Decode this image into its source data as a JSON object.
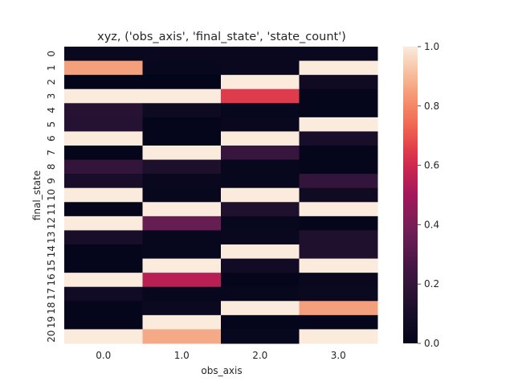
{
  "chart_data": {
    "type": "heatmap",
    "title": "xyz, ('obs_axis', 'final_state', 'state_count')",
    "xlabel": "obs_axis",
    "ylabel": "final_state",
    "x_categories": [
      "0.0",
      "1.0",
      "2.0",
      "3.0"
    ],
    "y_categories": [
      "0",
      "1",
      "2",
      "3",
      "4",
      "5",
      "6",
      "7",
      "8",
      "9",
      "10",
      "11",
      "12",
      "13",
      "14",
      "15",
      "16",
      "17",
      "18",
      "19",
      "20"
    ],
    "values": [
      [
        0.03,
        0.03,
        0.03,
        0.03
      ],
      [
        0.85,
        0.02,
        0.03,
        1.0
      ],
      [
        0.0,
        0.0,
        1.0,
        0.06
      ],
      [
        1.0,
        1.0,
        0.65,
        0.01
      ],
      [
        0.16,
        0.05,
        0.02,
        0.01
      ],
      [
        0.15,
        0.01,
        0.03,
        1.0
      ],
      [
        1.0,
        0.01,
        1.0,
        0.1
      ],
      [
        0.01,
        1.0,
        0.22,
        0.01
      ],
      [
        0.2,
        0.12,
        0.02,
        0.01
      ],
      [
        0.1,
        0.03,
        0.02,
        0.2
      ],
      [
        1.0,
        0.02,
        1.0,
        0.06
      ],
      [
        0.01,
        1.0,
        0.13,
        1.0
      ],
      [
        1.0,
        0.35,
        0.02,
        0.01
      ],
      [
        0.1,
        0.02,
        0.03,
        0.13
      ],
      [
        0.01,
        0.02,
        1.0,
        0.13
      ],
      [
        0.01,
        1.0,
        0.07,
        1.0
      ],
      [
        1.0,
        0.55,
        0.01,
        0.03
      ],
      [
        0.07,
        0.02,
        0.02,
        0.04
      ],
      [
        0.01,
        0.04,
        1.0,
        0.85
      ],
      [
        0.01,
        1.0,
        0.01,
        0.01
      ],
      [
        1.0,
        0.87,
        0.02,
        1.0
      ]
    ],
    "vmin": 0.0,
    "vmax": 1.0,
    "colormap": "rocket",
    "colorbar_ticks": [
      "0.0",
      "0.2",
      "0.4",
      "0.6",
      "0.8",
      "1.0"
    ],
    "grid": false
  }
}
